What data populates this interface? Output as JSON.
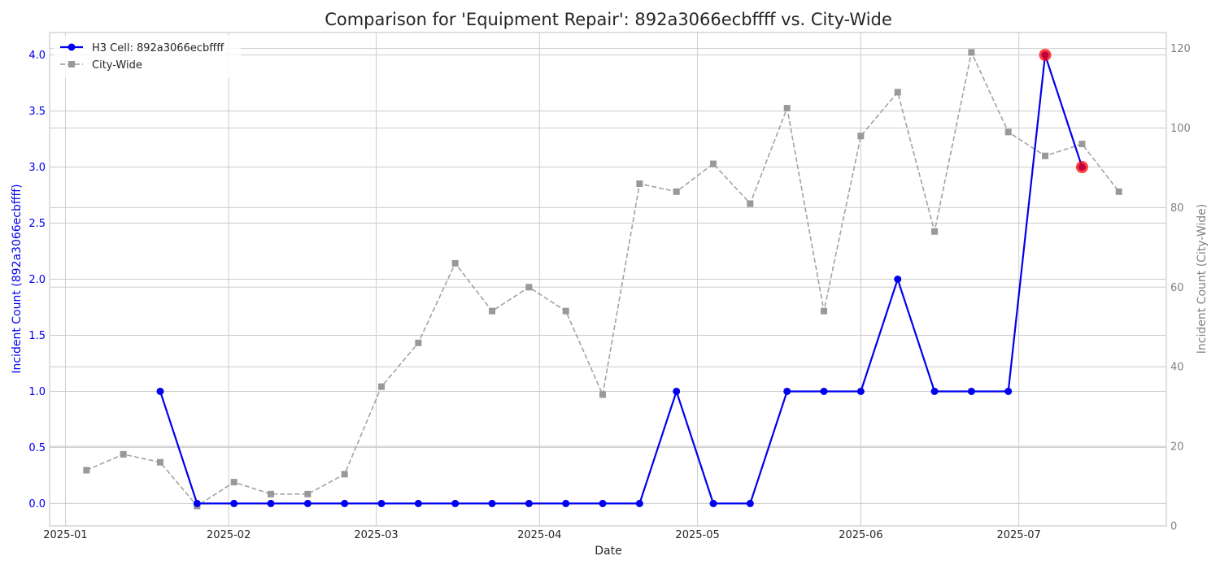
{
  "chart_data": {
    "type": "line",
    "title": "Comparison for 'Equipment Repair': 892a3066ecbffff vs. City-Wide",
    "xlabel": "Date",
    "ylabel_left": "Incident Count (892a3066ecbffff)",
    "ylabel_right": "Incident Count (City-Wide)",
    "xlim": [
      "2024-12-29",
      "2025-07-29"
    ],
    "ylim_left": [
      -0.2,
      4.2
    ],
    "ylim_right": [
      0,
      124
    ],
    "x_ticks": [
      "2025-01-01",
      "2025-02-01",
      "2025-03-01",
      "2025-04-01",
      "2025-05-01",
      "2025-06-01",
      "2025-07-01"
    ],
    "x_tick_labels": [
      "2025-01",
      "2025-02",
      "2025-03",
      "2025-04",
      "2025-05",
      "2025-06",
      "2025-07"
    ],
    "y_ticks_left": [
      "0.0",
      "0.5",
      "1.0",
      "1.5",
      "2.0",
      "2.5",
      "3.0",
      "3.5",
      "4.0"
    ],
    "y_ticks_right": [
      "0",
      "20",
      "40",
      "60",
      "80",
      "100",
      "120"
    ],
    "grid": true,
    "legend_position": "top-left",
    "series": [
      {
        "name": "H3 Cell: 892a3066ecbffff",
        "axis": "left",
        "color": "#0000ee",
        "marker": "circle",
        "line_style": "solid",
        "x": [
          "2025-01-19",
          "2025-01-26",
          "2025-02-02",
          "2025-02-09",
          "2025-02-16",
          "2025-02-23",
          "2025-03-02",
          "2025-03-09",
          "2025-03-16",
          "2025-03-23",
          "2025-03-30",
          "2025-04-06",
          "2025-04-13",
          "2025-04-20",
          "2025-04-27",
          "2025-05-04",
          "2025-05-11",
          "2025-05-18",
          "2025-05-25",
          "2025-06-01",
          "2025-06-08",
          "2025-06-15",
          "2025-06-22",
          "2025-06-29",
          "2025-07-06",
          "2025-07-13"
        ],
        "y": [
          1,
          0,
          0,
          0,
          0,
          0,
          0,
          0,
          0,
          0,
          0,
          0,
          0,
          0,
          1,
          0,
          0,
          1,
          1,
          1,
          2,
          1,
          1,
          1,
          4,
          3
        ]
      },
      {
        "name": "City-Wide",
        "axis": "right",
        "color": "#999999",
        "marker": "square",
        "line_style": "dashed",
        "x": [
          "2025-01-05",
          "2025-01-12",
          "2025-01-19",
          "2025-01-26",
          "2025-02-02",
          "2025-02-09",
          "2025-02-16",
          "2025-02-23",
          "2025-03-02",
          "2025-03-09",
          "2025-03-16",
          "2025-03-23",
          "2025-03-30",
          "2025-04-06",
          "2025-04-13",
          "2025-04-20",
          "2025-04-27",
          "2025-05-04",
          "2025-05-11",
          "2025-05-18",
          "2025-05-25",
          "2025-06-01",
          "2025-06-08",
          "2025-06-15",
          "2025-06-22",
          "2025-06-29",
          "2025-07-06",
          "2025-07-13",
          "2025-07-20"
        ],
        "y": [
          14,
          18,
          16,
          5,
          11,
          8,
          8,
          13,
          35,
          46,
          66,
          54,
          60,
          54,
          33,
          86,
          84,
          91,
          81,
          105,
          54,
          98,
          109,
          74,
          119,
          99,
          93,
          96,
          84
        ]
      }
    ],
    "highlights": {
      "series": "H3 Cell: 892a3066ecbffff",
      "color": "#ff0000",
      "points": [
        {
          "x": "2025-07-06",
          "y": 4
        },
        {
          "x": "2025-07-13",
          "y": 3
        }
      ]
    }
  },
  "style": {
    "left_axis_color": "#0000ee",
    "right_axis_color": "#808080",
    "grid_color": "#cccccc",
    "text_color": "#262626",
    "frame_color": "#cccccc"
  }
}
